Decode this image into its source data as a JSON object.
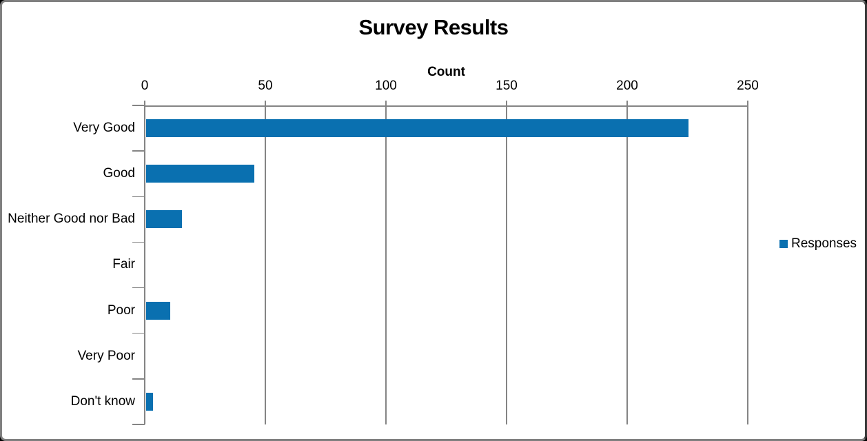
{
  "chart_data": {
    "type": "bar",
    "orientation": "horizontal",
    "title": "Survey Results",
    "xlabel": "Count",
    "ylabel": "",
    "categories": [
      "Very Good",
      "Good",
      "Neither Good nor Bad",
      "Fair",
      "Poor",
      "Very Poor",
      "Don't know"
    ],
    "series": [
      {
        "name": "Responses",
        "values": [
          225,
          45,
          15,
          0,
          10,
          0,
          3
        ]
      }
    ],
    "xlim": [
      0,
      250
    ],
    "xticks": [
      0,
      50,
      100,
      150,
      200,
      250
    ],
    "grid": true,
    "legend_position": "right",
    "colors": {
      "bar": "#0a70b0",
      "axis": "#848484",
      "text": "#000000",
      "background": "#ffffff",
      "window_border": "#7f7f7f"
    }
  }
}
